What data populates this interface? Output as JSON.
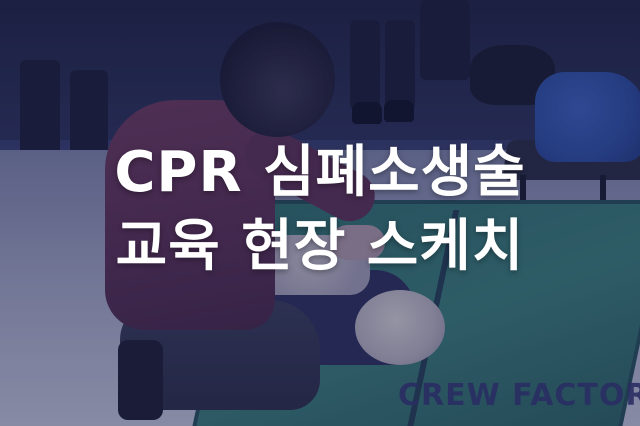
{
  "headline": {
    "line1": "CPR 심폐소생술",
    "line2": "교육 현장 스케치"
  },
  "watermark": "CREW FACTORY",
  "colors": {
    "overlay": "#181c48",
    "headline_text": "#ffffff",
    "watermark_text": "#2a2e63",
    "mat": "#3b7f77",
    "sweater": "#6e3a5b",
    "bag": "#2d4ea0"
  }
}
